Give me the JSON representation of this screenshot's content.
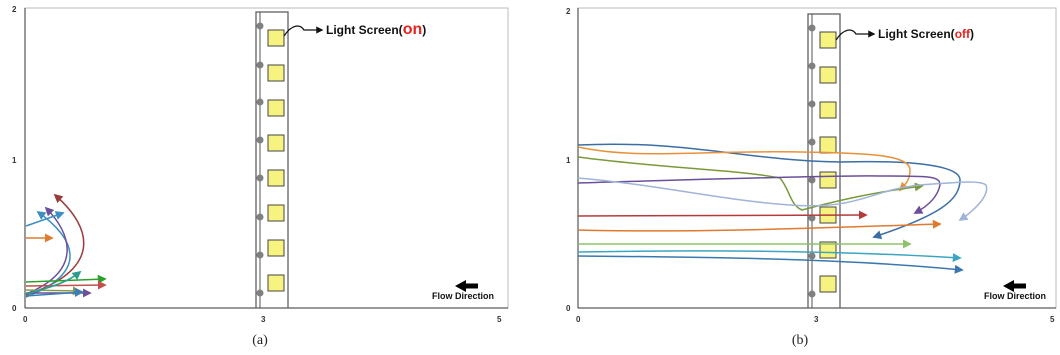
{
  "panels": [
    {
      "id": "a",
      "caption": "(a)",
      "light_label": "Light Screen(",
      "light_state": "on",
      "light_label_end": ")",
      "light_state_color": "#e8231f",
      "flow_label": "Flow Direction",
      "y_ticks": [
        "0",
        "1",
        "2"
      ],
      "x_ticks": [
        "0",
        "3",
        "5"
      ]
    },
    {
      "id": "b",
      "caption": "(b)",
      "light_label": "Light Screen(",
      "light_state": "off",
      "light_label_end": ")",
      "light_state_color": "#e8231f",
      "flow_label": "Flow Direction",
      "y_ticks": [
        "0",
        "1",
        "2"
      ],
      "x_ticks": [
        "0",
        "3",
        "5"
      ]
    }
  ],
  "colors": {
    "light_square_fill": "#f7f380",
    "light_square_stroke": "#444444",
    "dot": "#808080",
    "axis": "#333333"
  }
}
